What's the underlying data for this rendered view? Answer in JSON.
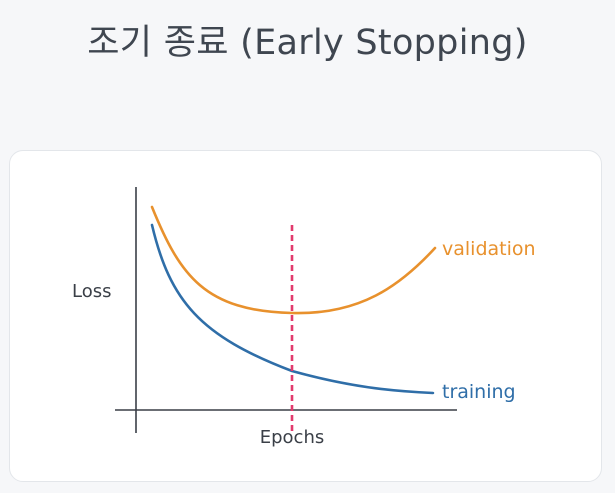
{
  "title": "조기 종료 (Early Stopping)",
  "chart_data": {
    "type": "line",
    "xlabel": "Epochs",
    "ylabel": "Loss",
    "series": [
      {
        "name": "validation",
        "color": "#e8912d"
      },
      {
        "name": "training",
        "color": "#2f6ea8"
      }
    ],
    "marker_color": "#e23a6d",
    "axis_color": "#3a3f47"
  }
}
